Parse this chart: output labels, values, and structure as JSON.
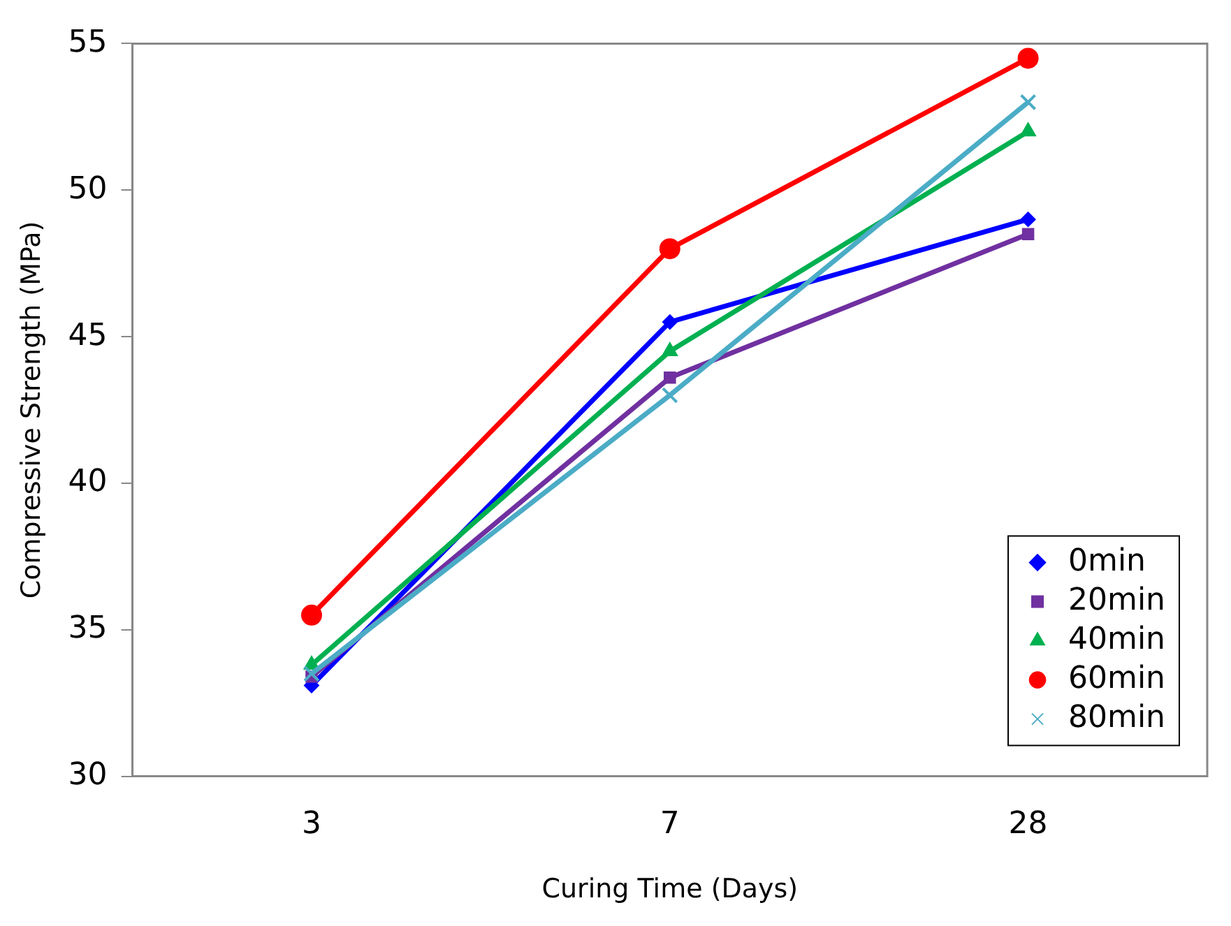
{
  "chart_data": {
    "type": "line",
    "xlabel": "Curing Time (Days)",
    "ylabel": "Compressive Strength (MPa)",
    "categories": [
      "3",
      "7",
      "28"
    ],
    "ylim": [
      30,
      55
    ],
    "yticks": [
      30,
      35,
      40,
      45,
      50,
      55
    ],
    "grid": false,
    "legend": "bottom right",
    "series": [
      {
        "name": "0min",
        "color": "#0000ff",
        "values": [
          33.1,
          45.5,
          49
        ],
        "marker": "diamond"
      },
      {
        "name": "20min",
        "color": "#7030a0",
        "values": [
          33.4,
          43.6,
          48.5
        ],
        "marker": "square"
      },
      {
        "name": "40min",
        "color": "#00b050",
        "values": [
          33.8,
          44.5,
          52
        ],
        "marker": "triangle"
      },
      {
        "name": "60min",
        "color": "#ff0000",
        "values": [
          35.5,
          48,
          54.5
        ],
        "marker": "circle"
      },
      {
        "name": "80min",
        "color": "#4bacc6",
        "values": [
          33.5,
          43,
          53
        ],
        "marker": "cross"
      }
    ]
  }
}
